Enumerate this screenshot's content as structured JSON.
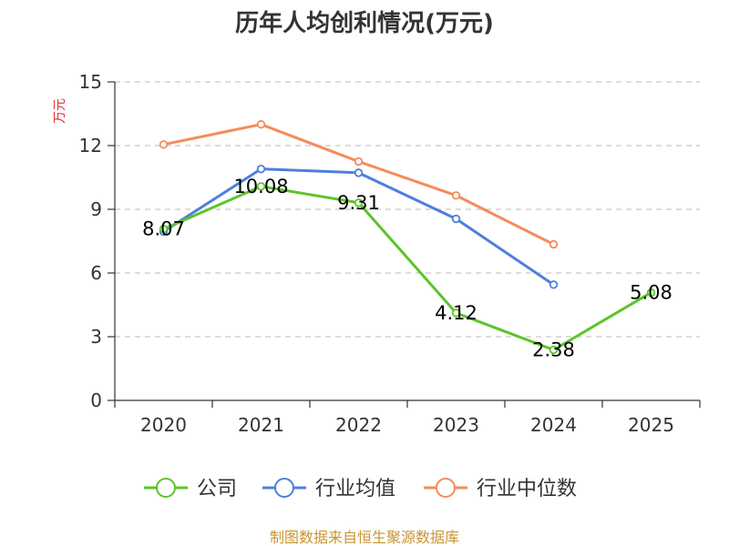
{
  "chart_data": {
    "type": "line",
    "title": "历年人均创利情况(万元)",
    "ylabel": "万元",
    "xlabel": "",
    "categories": [
      "2020",
      "2021",
      "2022",
      "2023",
      "2024",
      "2025"
    ],
    "yticks": [
      "0",
      "3",
      "6",
      "9",
      "12",
      "15"
    ],
    "ylim": [
      0,
      15
    ],
    "grid": true,
    "series": [
      {
        "name": "公司",
        "color": "#5cc42a",
        "values": [
          8.07,
          10.08,
          9.31,
          4.12,
          2.38,
          5.08
        ],
        "labels": [
          "8.07",
          "10.08",
          "9.31",
          "4.12",
          "2.38",
          "5.08"
        ]
      },
      {
        "name": "行业均值",
        "color": "#4f7fdc",
        "values": [
          7.95,
          10.9,
          10.72,
          8.55,
          5.45,
          null
        ]
      },
      {
        "name": "行业中位数",
        "color": "#f58b5b",
        "values": [
          12.05,
          13.0,
          11.25,
          9.65,
          7.35,
          null
        ]
      }
    ],
    "legend_position": "bottom",
    "ylabel_color": "#e0303a"
  },
  "source": {
    "text": "制图数据来自恒生聚源数据库",
    "color": "#c9952f"
  }
}
